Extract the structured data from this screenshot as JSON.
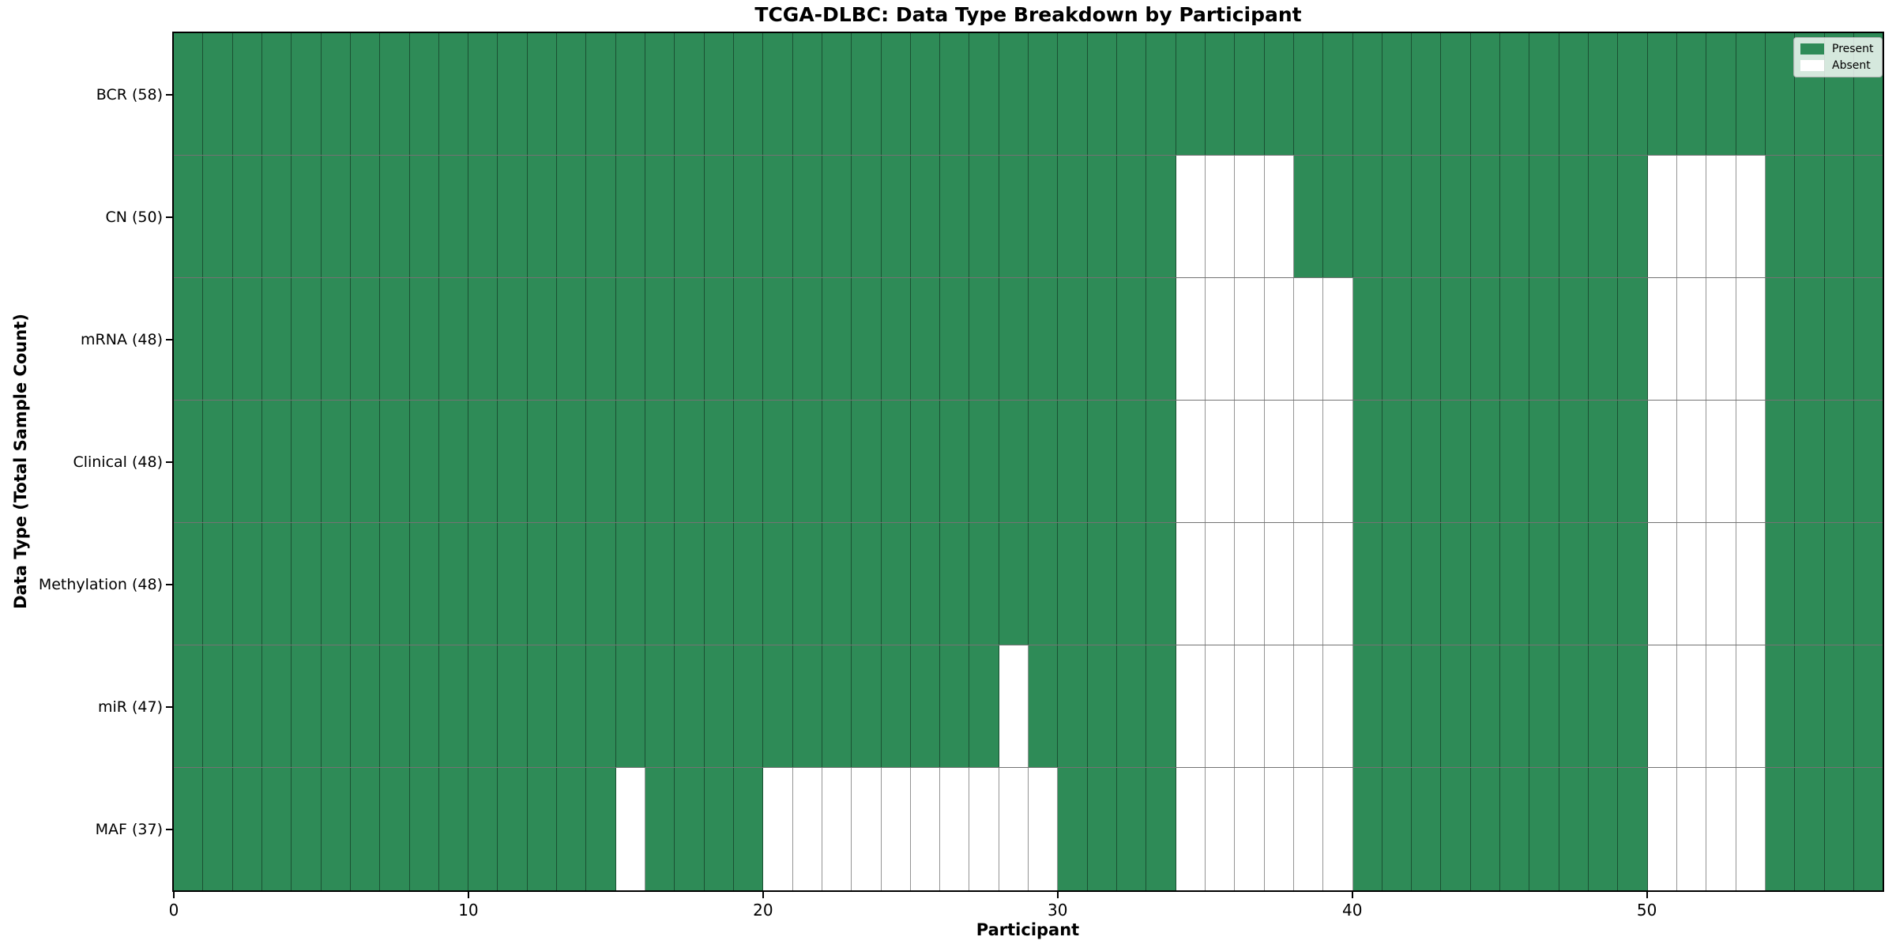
{
  "chart_data": {
    "type": "heatmap",
    "title": "TCGA-DLBC: Data Type Breakdown by Participant",
    "xlabel": "Participant",
    "ylabel": "Data Type (Total Sample Count)",
    "x_ticks": [
      "0",
      "10",
      "20",
      "30",
      "40",
      "50"
    ],
    "x_range": [
      0,
      58
    ],
    "n_participants": 58,
    "grid": "cell-edges",
    "legend_position": "upper right",
    "colors": {
      "present": "#2e8b57",
      "absent": "#ffffff"
    },
    "rows": [
      {
        "label": "BCR (58)",
        "data_type": "BCR",
        "total": 58,
        "absent_participants": []
      },
      {
        "label": "CN (50)",
        "data_type": "CN",
        "total": 50,
        "absent_participants": [
          34,
          35,
          36,
          37,
          50,
          51,
          52,
          53
        ]
      },
      {
        "label": "mRNA (48)",
        "data_type": "mRNA",
        "total": 48,
        "absent_participants": [
          34,
          35,
          36,
          37,
          38,
          39,
          50,
          51,
          52,
          53
        ]
      },
      {
        "label": "Clinical (48)",
        "data_type": "Clinical",
        "total": 48,
        "absent_participants": [
          34,
          35,
          36,
          37,
          38,
          39,
          50,
          51,
          52,
          53
        ]
      },
      {
        "label": "Methylation (48)",
        "data_type": "Methylation",
        "total": 48,
        "absent_participants": [
          34,
          35,
          36,
          37,
          38,
          39,
          50,
          51,
          52,
          53
        ]
      },
      {
        "label": "miR (47)",
        "data_type": "miR",
        "total": 47,
        "absent_participants": [
          28,
          34,
          35,
          36,
          37,
          38,
          39,
          50,
          51,
          52,
          53
        ]
      },
      {
        "label": "MAF (37)",
        "data_type": "MAF",
        "total": 37,
        "absent_participants": [
          15,
          20,
          21,
          22,
          23,
          24,
          25,
          26,
          27,
          28,
          29,
          34,
          35,
          36,
          37,
          38,
          39,
          50,
          51,
          52,
          53
        ]
      }
    ],
    "legend": [
      {
        "label": "Present",
        "color": "#2e8b57"
      },
      {
        "label": "Absent",
        "color": "#ffffff"
      }
    ]
  }
}
